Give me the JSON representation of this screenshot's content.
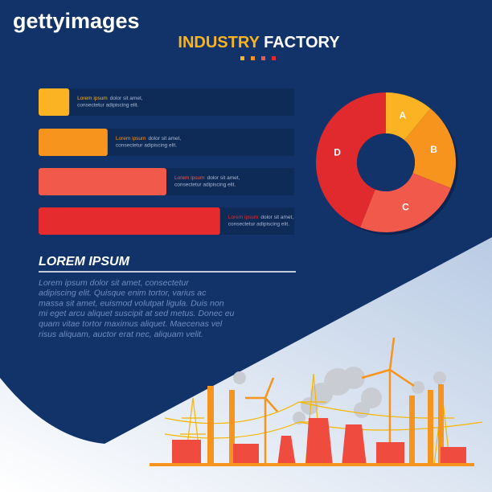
{
  "header": {
    "logo": "gettyimages"
  },
  "title": {
    "part1": "INDUSTRY",
    "part2": "FACTORY"
  },
  "bars": {
    "type": "bar",
    "xlim": [
      0,
      100
    ],
    "items": [
      {
        "label_bold": "Lorem ipsum",
        "label_rest": "dolor sit amet,",
        "label_line2": "consectetur adipiscing elit.",
        "value": 12,
        "color": "#fbb323"
      },
      {
        "label_bold": "Lorem ipsum",
        "label_rest": "dolor sit amet,",
        "label_line2": "consectetur adipiscing elit.",
        "value": 27,
        "color": "#f7941d"
      },
      {
        "label_bold": "Lorem ipsum",
        "label_rest": "dolor sit amet,",
        "label_line2": "consectetur adipiscing elit.",
        "value": 50,
        "color": "#f15a4a"
      },
      {
        "label_bold": "Lorem ipsum",
        "label_rest": "dolor sit amet,",
        "label_line2": "consectetur adipiscing elit.",
        "value": 71,
        "color": "#e62b2f"
      }
    ]
  },
  "donut": {
    "type": "pie",
    "segments": [
      {
        "label": "A",
        "value": 11,
        "color": "#fbb323"
      },
      {
        "label": "B",
        "value": 20,
        "color": "#f7941d"
      },
      {
        "label": "C",
        "value": 25,
        "color": "#f15a4a"
      },
      {
        "label": "D",
        "value": 44,
        "color": "#e02a2e"
      }
    ]
  },
  "section": {
    "heading": "LOREM IPSUM",
    "lines": [
      "Lorem ipsum dolor sit amet, consectetur",
      "adipiscing elit. Quisque enim tortor, varius ac",
      "massa sit amet, euismod volutpat ligula. Duis non",
      "mi eget arcu aliquet suscipit at sed metus. Donec eu",
      "quam vitae tortor maximus aliquet. Maecenas vel",
      "risus aliquam, auctor erat nec, aliquam velit."
    ]
  }
}
